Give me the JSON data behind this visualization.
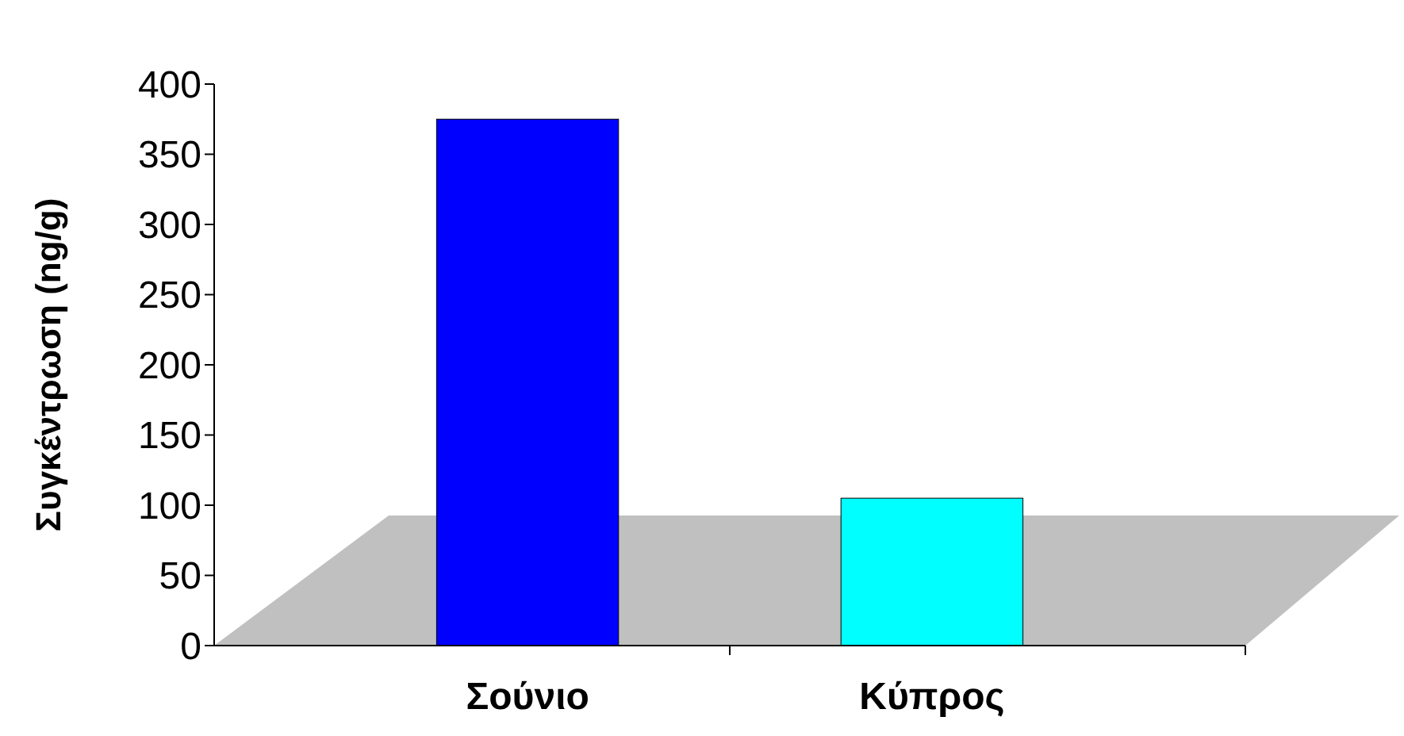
{
  "chart_data": {
    "type": "bar",
    "ylabel": "Συγκέντρωση (ng/g)",
    "categories": [
      "Σούνιο",
      "Κύπρος"
    ],
    "values": [
      375,
      105
    ],
    "colors": [
      "#0000ff",
      "#00ffff"
    ],
    "ylim": [
      0,
      400
    ],
    "yticks": [
      0,
      50,
      100,
      150,
      200,
      250,
      300,
      350,
      400
    ],
    "grid": false
  }
}
